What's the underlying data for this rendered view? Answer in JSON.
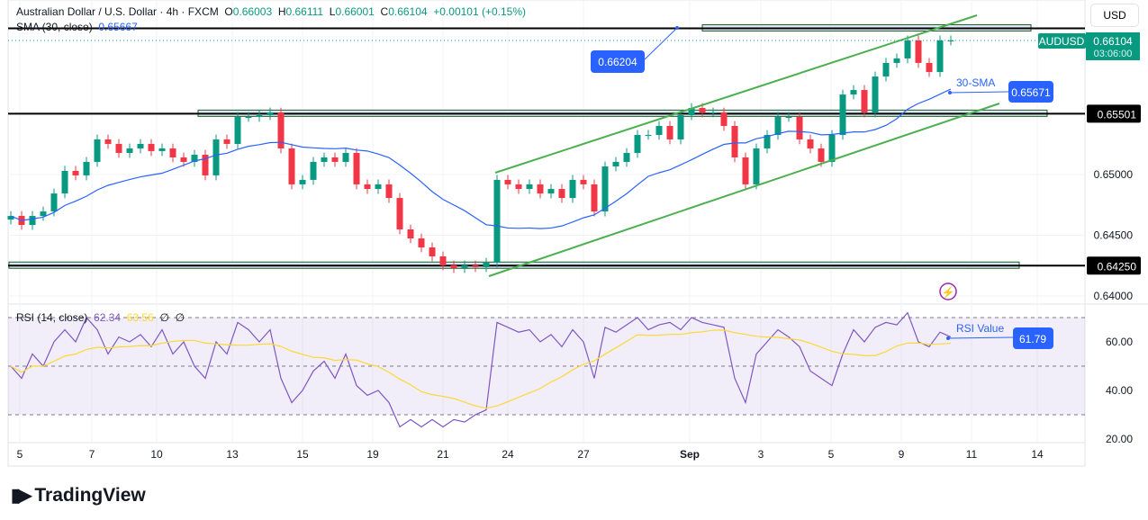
{
  "header": {
    "symbol_title": "Australian Dollar / U.S. Dollar · 4h · FXCM",
    "open_label": "O",
    "open": "0.66003",
    "high_label": "H",
    "high": "0.66111",
    "low_label": "L",
    "low": "0.66001",
    "close_label": "C",
    "close": "0.66104",
    "change": "+0.00101 (+0.15%)",
    "sma_label": "SMA (30, close)",
    "sma_value": "0.65667",
    "rsi_label": "RSI (14, close)",
    "rsi_value": "62.34",
    "rsi_ma_value": "63.56",
    "rsi_extra1": "∅",
    "rsi_extra2": "∅"
  },
  "currency_button": "USD",
  "price_tag": {
    "symbol": "AUDUSD",
    "price": "0.66104",
    "countdown": "03:06:00"
  },
  "annotations": {
    "top_level": "0.66204",
    "sma_text": "30-SMA",
    "sma_level": "0.65671",
    "rsi_text": "RSI Value",
    "rsi_level": "61.79"
  },
  "brand": "TradingView",
  "colors": {
    "up": "#089981",
    "down": "#f23645",
    "sma": "#2962ff",
    "rsi": "#7e57c2",
    "rsi_ma": "#fdd835",
    "channel": "#4caf50",
    "label": "#2962ff"
  },
  "chart_data": [
    {
      "type": "candlestick",
      "title": "Australian Dollar / U.S. Dollar · 4h · FXCM",
      "x_ticks": [
        "5",
        "7",
        "10",
        "13",
        "15",
        "19",
        "21",
        "24",
        "27",
        "Sep",
        "3",
        "5",
        "9",
        "11",
        "14"
      ],
      "y_ticks": [
        "0.65000",
        "0.64500",
        "0.64000"
      ],
      "y_marked_levels": [
        "0.66204",
        "0.65501",
        "0.64250"
      ],
      "ylim": [
        0.6395,
        0.6645
      ],
      "closes": [
        0.64659,
        0.64585,
        0.64659,
        0.64696,
        0.64844,
        0.6503,
        0.64993,
        0.65104,
        0.65289,
        0.65252,
        0.65178,
        0.65215,
        0.65252,
        0.65193,
        0.65215,
        0.65141,
        0.65104,
        0.65163,
        0.64993,
        0.65289,
        0.65252,
        0.65474,
        0.65474,
        0.65489,
        0.65511,
        0.65215,
        0.64919,
        0.64956,
        0.65104,
        0.65141,
        0.65104,
        0.65178,
        0.64919,
        0.64881,
        0.64919,
        0.64807,
        0.64548,
        0.64474,
        0.644,
        0.64326,
        0.64252,
        0.6423,
        0.64252,
        0.64237,
        0.64274,
        0.64956,
        0.64919,
        0.64881,
        0.64919,
        0.64844,
        0.64881,
        0.64807,
        0.64956,
        0.64919,
        0.64696,
        0.65067,
        0.65104,
        0.65178,
        0.65326,
        0.65326,
        0.654,
        0.65289,
        0.65489,
        0.65548,
        0.65511,
        0.65511,
        0.654,
        0.65141,
        0.64919,
        0.65215,
        0.65326,
        0.65474,
        0.65474,
        0.65289,
        0.65215,
        0.65104,
        0.65326,
        0.65659,
        0.65696,
        0.65511,
        0.65807,
        0.65919,
        0.65956,
        0.66104,
        0.65919,
        0.65844,
        0.66104,
        0.66104
      ],
      "sma_period": 30,
      "channel": "ascending"
    },
    {
      "type": "line",
      "title": "RSI (14, close)",
      "y_ticks": [
        "60.00",
        "40.00",
        "20.00"
      ],
      "ylim": [
        18,
        75
      ],
      "bands": [
        30,
        50,
        70
      ],
      "rsi": [
        50,
        45,
        55,
        50,
        60,
        65,
        60,
        70,
        65,
        55,
        62,
        60,
        63,
        58,
        65,
        55,
        60,
        50,
        45,
        60,
        55,
        68,
        65,
        60,
        65,
        45,
        35,
        40,
        48,
        52,
        45,
        55,
        42,
        38,
        40,
        35,
        25,
        28,
        25,
        28,
        25,
        28,
        27,
        30,
        32,
        68,
        66,
        64,
        65,
        60,
        63,
        58,
        65,
        60,
        45,
        66,
        64,
        67,
        70,
        65,
        67,
        68,
        65,
        70,
        68,
        67,
        66,
        45,
        35,
        55,
        60,
        65,
        62,
        58,
        48,
        45,
        42,
        55,
        65,
        60,
        66,
        68,
        67,
        72,
        60,
        58,
        64,
        62
      ]
    }
  ]
}
